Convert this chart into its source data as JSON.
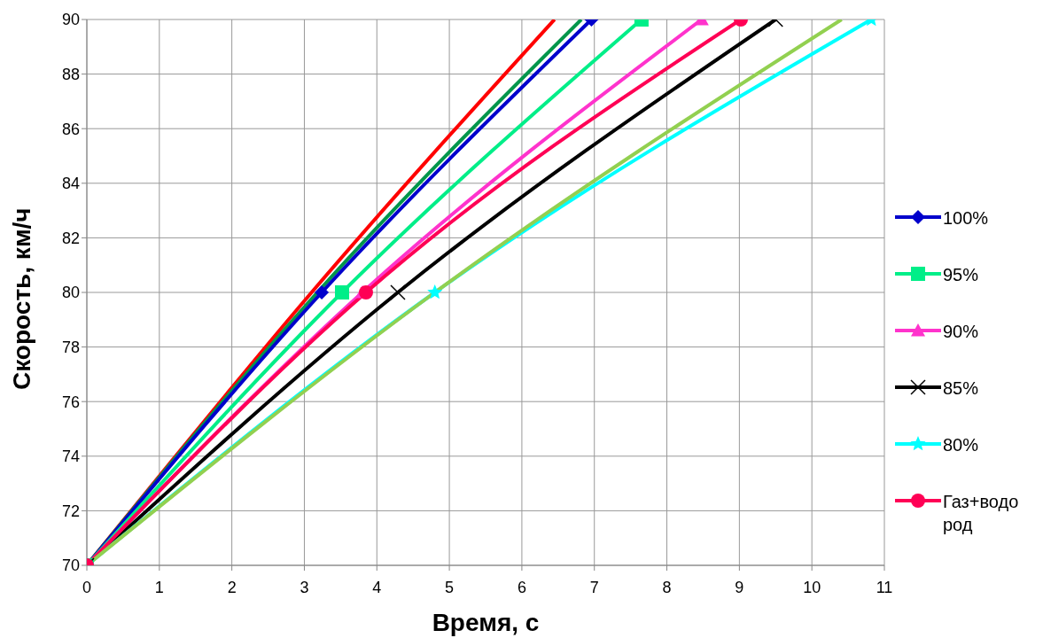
{
  "chart_data": {
    "type": "line",
    "xlabel": "Время, с",
    "ylabel": "Скорость, км/ч",
    "xlim": [
      0,
      11
    ],
    "xticks": [
      0,
      1,
      2,
      3,
      4,
      5,
      6,
      7,
      8,
      9,
      10,
      11
    ],
    "ylim": [
      70,
      90
    ],
    "yticks": [
      70,
      72,
      74,
      76,
      78,
      80,
      82,
      84,
      86,
      88,
      90
    ],
    "grid": true,
    "legend": "right",
    "line_style": "solid",
    "series": [
      {
        "color": "#ff0000",
        "marker": "none",
        "x": [
          0,
          3.1,
          6.45
        ],
        "values": [
          70,
          80,
          90
        ]
      },
      {
        "color": "#00964b",
        "marker": "none",
        "x": [
          0,
          3.18,
          6.82
        ],
        "values": [
          70,
          80,
          90
        ]
      },
      {
        "name": "100%",
        "color": "#0000cc",
        "marker": "diamond",
        "x": [
          0,
          3.24,
          6.96
        ],
        "values": [
          70,
          80,
          90
        ]
      },
      {
        "name": "95%",
        "color": "#00ee88",
        "marker": "square",
        "x": [
          0,
          3.52,
          7.65
        ],
        "values": [
          70,
          80,
          90
        ]
      },
      {
        "name": "90%",
        "color": "#ff33cc",
        "marker": "triangle",
        "x": [
          0,
          3.8,
          8.48
        ],
        "values": [
          70,
          80,
          90
        ]
      },
      {
        "name": "85%",
        "color": "#000000",
        "marker": "cross",
        "x": [
          0,
          4.29,
          9.5
        ],
        "values": [
          70,
          80,
          90
        ]
      },
      {
        "name": "80%",
        "color": "#00ffff",
        "marker": "star",
        "x": [
          0,
          4.8,
          10.82
        ],
        "values": [
          70,
          80,
          90
        ]
      },
      {
        "name": "Газ+водород",
        "color": "#ff0055",
        "marker": "circle",
        "x": [
          0,
          3.85,
          9.02
        ],
        "values": [
          70,
          80,
          90
        ]
      },
      {
        "color": "#92d050",
        "marker": "none",
        "x": [
          0,
          4.8,
          10.41
        ],
        "values": [
          70,
          80,
          90
        ]
      }
    ]
  }
}
